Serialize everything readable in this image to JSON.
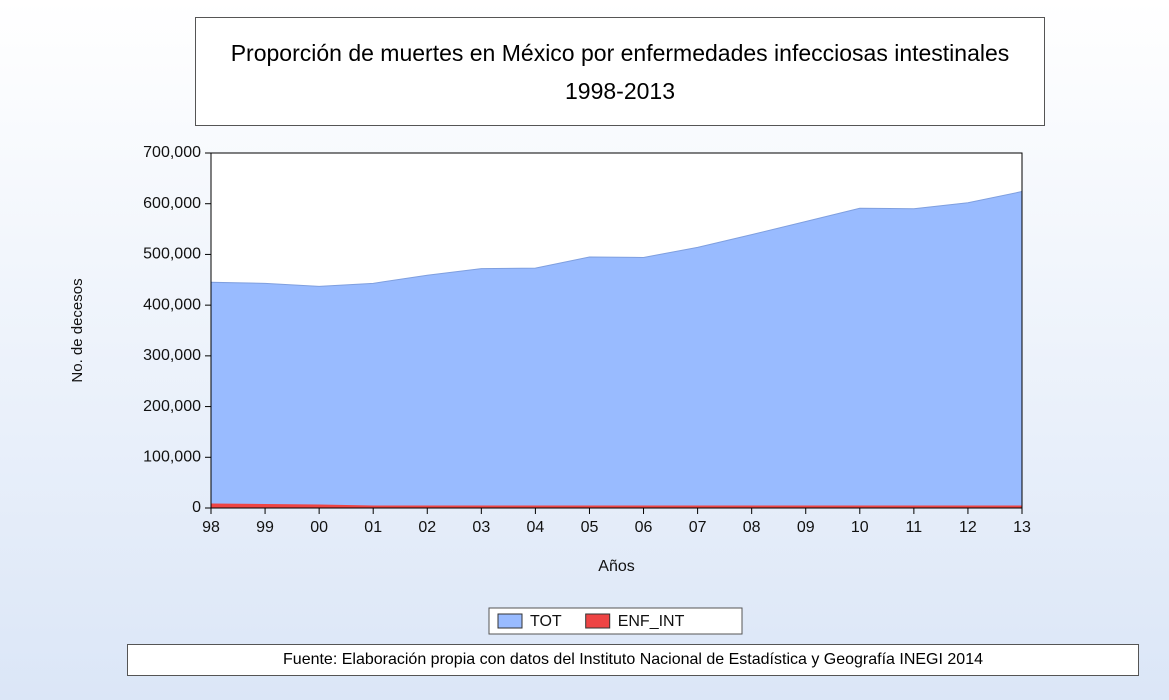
{
  "chart_data": {
    "type": "area",
    "title": "Proporción de muertes en México por enfermedades infecciosas intestinales 1998-2013",
    "xlabel": "Años",
    "ylabel": "No. de decesos",
    "categories": [
      "98",
      "99",
      "00",
      "01",
      "02",
      "03",
      "04",
      "05",
      "06",
      "07",
      "08",
      "09",
      "10",
      "11",
      "12",
      "13"
    ],
    "series": [
      {
        "name": "TOT",
        "color": "#99bbff",
        "values": [
          445000,
          443000,
          437000,
          443000,
          459000,
          472000,
          473000,
          495000,
          494000,
          514000,
          539000,
          565000,
          591000,
          590000,
          602000,
          624000
        ]
      },
      {
        "name": "ENF_INT",
        "color": "#ee4444",
        "values": [
          8000,
          7000,
          6000,
          4000,
          4000,
          4000,
          4000,
          4000,
          4000,
          4000,
          4000,
          4000,
          4000,
          4000,
          4000,
          4000
        ]
      }
    ],
    "ylim": [
      0,
      700000
    ],
    "yticks": [
      0,
      {
        "value": 100000,
        "label": "100,000"
      },
      {
        "value": 200000,
        "label": "200,000"
      },
      {
        "value": 300000,
        "label": "300,000"
      },
      {
        "value": 400000,
        "label": "400,000"
      },
      {
        "value": 500000,
        "label": "500,000"
      },
      {
        "value": 600000,
        "label": "600,000"
      },
      {
        "value": 700000,
        "label": "700,000"
      }
    ],
    "legend": "bottom",
    "source": "Fuente: Elaboración propia con datos del Instituto Nacional de Estadística y Geografía INEGI 2014"
  }
}
